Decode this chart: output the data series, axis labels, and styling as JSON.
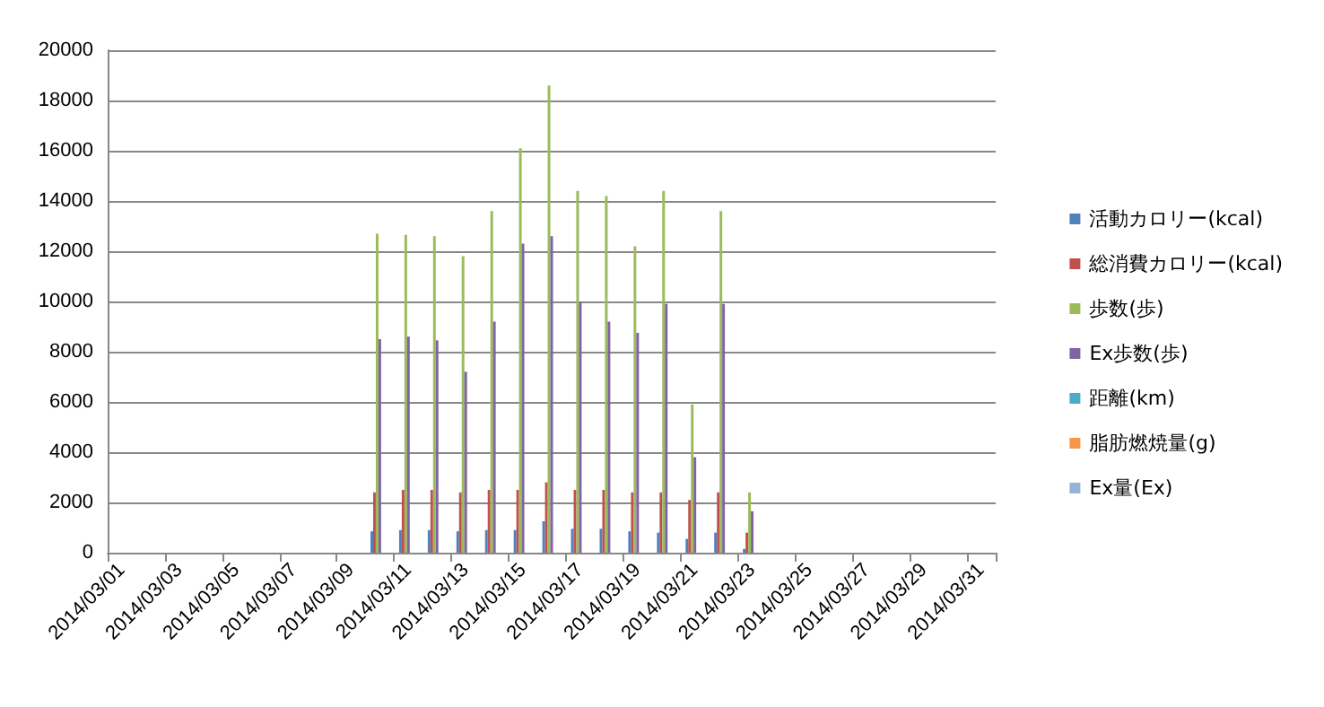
{
  "chart_data": {
    "type": "bar",
    "categories": [
      "2014/03/01",
      null,
      "2014/03/03",
      null,
      "2014/03/05",
      null,
      "2014/03/07",
      null,
      "2014/03/09",
      null,
      "2014/03/11",
      null,
      "2014/03/13",
      null,
      "2014/03/15",
      null,
      "2014/03/17",
      null,
      "2014/03/19",
      null,
      "2014/03/21",
      null,
      "2014/03/23",
      null,
      "2014/03/25",
      null,
      "2014/03/27",
      null,
      "2014/03/29",
      null,
      "2014/03/31"
    ],
    "series": [
      {
        "name": "活動カロリー(kcal)",
        "color": "#4f81bd",
        "values": [
          null,
          null,
          null,
          null,
          null,
          null,
          null,
          null,
          null,
          850,
          900,
          900,
          850,
          900,
          900,
          1250,
          950,
          950,
          850,
          800,
          550,
          800,
          150,
          null,
          null,
          null,
          null,
          null,
          null,
          null,
          null
        ]
      },
      {
        "name": "総消費カロリー(kcal)",
        "color": "#c0504d",
        "values": [
          null,
          null,
          null,
          null,
          null,
          null,
          null,
          null,
          null,
          2400,
          2500,
          2500,
          2400,
          2500,
          2500,
          2800,
          2500,
          2500,
          2400,
          2400,
          2100,
          2400,
          800,
          null,
          null,
          null,
          null,
          null,
          null,
          null,
          null
        ]
      },
      {
        "name": "歩数(歩)",
        "color": "#9bbb59",
        "values": [
          null,
          null,
          null,
          null,
          null,
          null,
          null,
          null,
          null,
          12700,
          12650,
          12600,
          11800,
          13600,
          16100,
          18600,
          14400,
          14200,
          12200,
          14400,
          5900,
          13600,
          2400,
          null,
          null,
          null,
          null,
          null,
          null,
          null,
          null
        ]
      },
      {
        "name": "Ex歩数(歩)",
        "color": "#8064a2",
        "values": [
          null,
          null,
          null,
          null,
          null,
          null,
          null,
          null,
          null,
          8500,
          8600,
          8450,
          7200,
          9200,
          12300,
          12600,
          10000,
          9200,
          8750,
          9900,
          3800,
          9900,
          1650,
          null,
          null,
          null,
          null,
          null,
          null,
          null,
          null
        ]
      },
      {
        "name": "距離(km)",
        "color": "#4bacc6",
        "values": [
          null,
          null,
          null,
          null,
          null,
          null,
          null,
          null,
          null,
          0,
          0,
          0,
          0,
          0,
          0,
          0,
          0,
          0,
          0,
          0,
          0,
          0,
          0,
          null,
          null,
          null,
          null,
          null,
          null,
          null,
          null
        ]
      },
      {
        "name": "脂肪燃焼量(g)",
        "color": "#f79646",
        "values": [
          null,
          null,
          null,
          null,
          null,
          null,
          null,
          null,
          null,
          0,
          0,
          0,
          0,
          0,
          0,
          0,
          0,
          0,
          0,
          0,
          0,
          0,
          0,
          null,
          null,
          null,
          null,
          null,
          null,
          null,
          null
        ]
      },
      {
        "name": "Ex量(Ex)",
        "color": "#95b3d7",
        "values": [
          null,
          null,
          null,
          null,
          null,
          null,
          null,
          null,
          null,
          0,
          0,
          0,
          0,
          0,
          0,
          0,
          0,
          0,
          0,
          0,
          0,
          0,
          0,
          null,
          null,
          null,
          null,
          null,
          null,
          null,
          null
        ]
      }
    ],
    "ylim": [
      0,
      20000
    ],
    "yticks": [
      0,
      2000,
      4000,
      6000,
      8000,
      10000,
      12000,
      14000,
      16000,
      18000,
      20000
    ],
    "grid": "y",
    "legend": "right"
  }
}
